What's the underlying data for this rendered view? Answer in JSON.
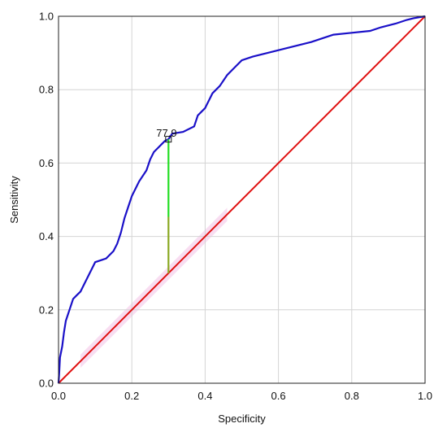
{
  "chart_data": {
    "type": "line",
    "xlabel": "Specificity",
    "ylabel": "Sensitivity",
    "xlim": [
      0,
      1
    ],
    "ylim": [
      0,
      1
    ],
    "grid": true,
    "x_ticks": [
      "0.0",
      "0.2",
      "0.4",
      "0.6",
      "0.8",
      "1.0"
    ],
    "y_ticks": [
      "0.0",
      "0.2",
      "0.4",
      "0.6",
      "0.8",
      "1.0"
    ],
    "series": [
      {
        "color": "#1a10c8",
        "points": [
          [
            0.0,
            0.0
          ],
          [
            0.002,
            0.03
          ],
          [
            0.004,
            0.07
          ],
          [
            0.01,
            0.1
          ],
          [
            0.015,
            0.14
          ],
          [
            0.02,
            0.17
          ],
          [
            0.03,
            0.2
          ],
          [
            0.04,
            0.23
          ],
          [
            0.05,
            0.24
          ],
          [
            0.06,
            0.25
          ],
          [
            0.07,
            0.27
          ],
          [
            0.08,
            0.29
          ],
          [
            0.09,
            0.31
          ],
          [
            0.1,
            0.33
          ],
          [
            0.13,
            0.34
          ],
          [
            0.15,
            0.36
          ],
          [
            0.16,
            0.38
          ],
          [
            0.17,
            0.41
          ],
          [
            0.18,
            0.45
          ],
          [
            0.19,
            0.48
          ],
          [
            0.2,
            0.51
          ],
          [
            0.21,
            0.53
          ],
          [
            0.22,
            0.55
          ],
          [
            0.24,
            0.58
          ],
          [
            0.25,
            0.61
          ],
          [
            0.26,
            0.63
          ],
          [
            0.27,
            0.64
          ],
          [
            0.28,
            0.65
          ],
          [
            0.29,
            0.66
          ],
          [
            0.3,
            0.665
          ],
          [
            0.31,
            0.68
          ],
          [
            0.34,
            0.685
          ],
          [
            0.37,
            0.7
          ],
          [
            0.38,
            0.73
          ],
          [
            0.39,
            0.74
          ],
          [
            0.4,
            0.75
          ],
          [
            0.41,
            0.77
          ],
          [
            0.42,
            0.79
          ],
          [
            0.44,
            0.81
          ],
          [
            0.46,
            0.84
          ],
          [
            0.48,
            0.86
          ],
          [
            0.5,
            0.88
          ],
          [
            0.53,
            0.89
          ],
          [
            0.57,
            0.9
          ],
          [
            0.61,
            0.91
          ],
          [
            0.65,
            0.92
          ],
          [
            0.69,
            0.93
          ],
          [
            0.72,
            0.94
          ],
          [
            0.75,
            0.95
          ],
          [
            0.8,
            0.955
          ],
          [
            0.85,
            0.96
          ],
          [
            0.88,
            0.97
          ],
          [
            0.92,
            0.98
          ],
          [
            0.95,
            0.99
          ],
          [
            0.97,
            0.995
          ],
          [
            1.0,
            1.0
          ]
        ]
      },
      {
        "color": "#e01010",
        "points": [
          [
            0.0,
            0.0
          ],
          [
            1.0,
            1.0
          ]
        ]
      }
    ],
    "annotations": [
      {
        "text": "77.9",
        "x": 0.3,
        "y_top": 0.665,
        "y_bottom": 0.3,
        "line_color": "#22dd22",
        "line_color_lower": "#8aa822"
      }
    ],
    "shaded_diagonal_color": "#f6d4ee"
  }
}
